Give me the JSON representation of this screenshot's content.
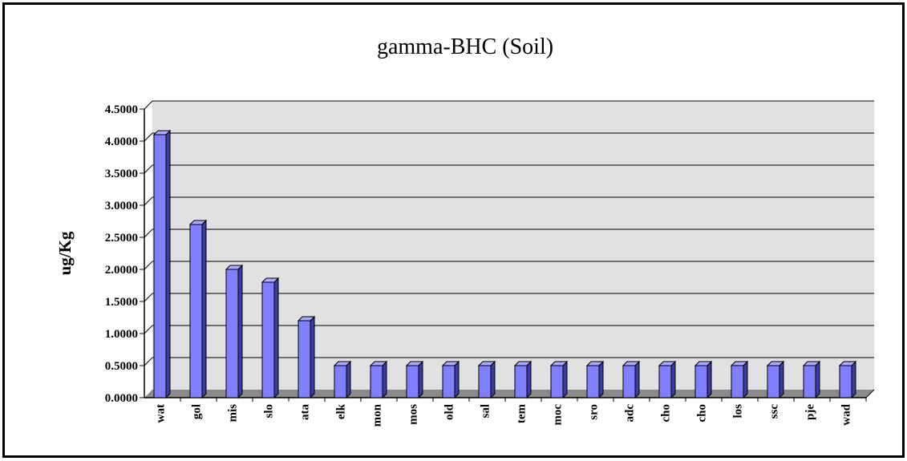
{
  "chart_data": {
    "type": "bar",
    "title": "gamma-BHC (Soil)",
    "xlabel": "",
    "ylabel": "ug/Kg",
    "ylim": [
      0,
      4.5
    ],
    "yticks": [
      "0.0000",
      "0.5000",
      "1.0000",
      "1.5000",
      "2.0000",
      "2.5000",
      "3.0000",
      "3.5000",
      "4.0000",
      "4.5000"
    ],
    "grid": true,
    "style": "3d-column",
    "colors": {
      "bar_front": "#8080ff",
      "bar_side": "#3c3ca0",
      "bar_top": "#aaaaff",
      "plot_back": "#e1e1e1",
      "floor": "#8a8a8a"
    },
    "categories": [
      "wat",
      "gol",
      "mis",
      "slo",
      "ata",
      "elk",
      "mon",
      "mos",
      "old",
      "sal",
      "tem",
      "moc",
      "sro",
      "adc",
      "cho",
      "cho",
      "los",
      "ssc",
      "pje",
      "wad"
    ],
    "values": [
      4.1,
      2.7,
      2.0,
      1.8,
      1.2,
      0.5,
      0.5,
      0.5,
      0.5,
      0.5,
      0.5,
      0.5,
      0.5,
      0.5,
      0.5,
      0.5,
      0.5,
      0.5,
      0.5,
      0.5
    ]
  }
}
